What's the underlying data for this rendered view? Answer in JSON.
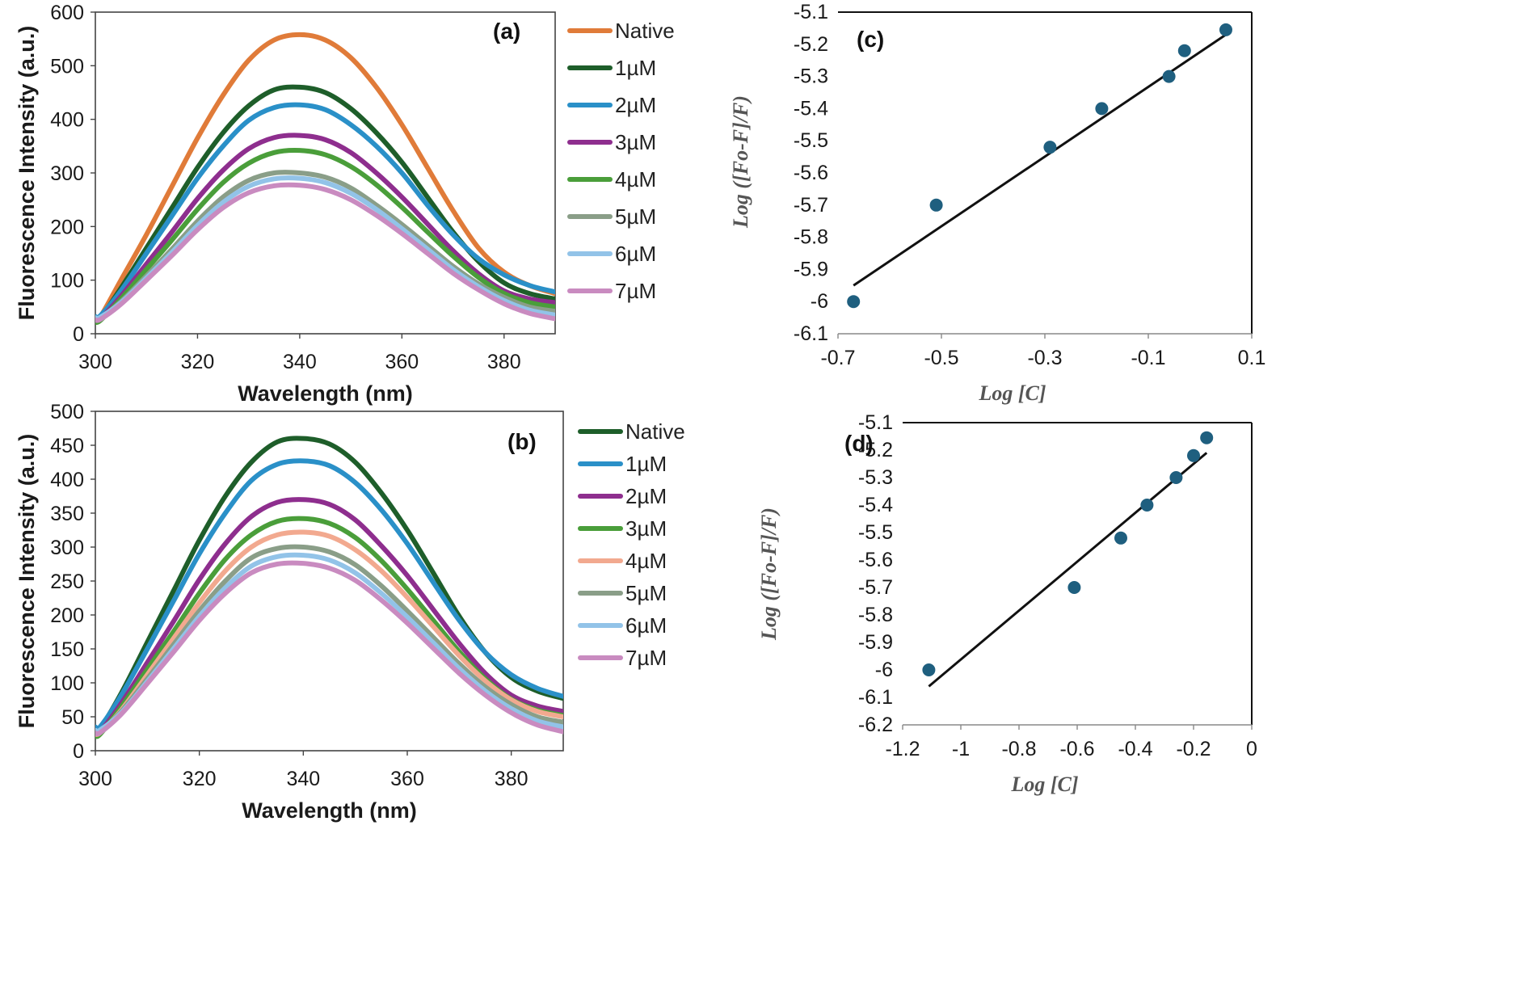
{
  "figure": {
    "panels": [
      "a",
      "b",
      "c",
      "d"
    ]
  },
  "chart_data": [
    {
      "id": "a",
      "type": "line",
      "panel_label": "(a)",
      "xlabel": "Wavelength (nm)",
      "ylabel": "Fluorescence Intensity (a.u.)",
      "xlim": [
        300,
        390
      ],
      "ylim": [
        0,
        600
      ],
      "xticks": [
        300,
        320,
        340,
        360,
        380
      ],
      "yticks": [
        0,
        100,
        200,
        300,
        400,
        500,
        600
      ],
      "grid": false,
      "legend_position": "right",
      "x": [
        300,
        301,
        305,
        310,
        315,
        320,
        325,
        330,
        335,
        340,
        345,
        350,
        355,
        360,
        365,
        370,
        375,
        380,
        385,
        390
      ],
      "series": [
        {
          "name": "Native",
          "color": "#E07B39",
          "values": [
            30,
            32,
            100,
            185,
            275,
            365,
            445,
            510,
            548,
            558,
            548,
            515,
            460,
            390,
            310,
            230,
            160,
            115,
            90,
            75
          ]
        },
        {
          "name": "1µM",
          "color": "#1E5E2A",
          "values": [
            28,
            30,
            85,
            160,
            235,
            310,
            375,
            425,
            455,
            460,
            450,
            420,
            375,
            320,
            255,
            190,
            135,
            95,
            75,
            65
          ]
        },
        {
          "name": "2µM",
          "color": "#2A90C8",
          "values": [
            32,
            34,
            80,
            150,
            220,
            290,
            350,
            398,
            422,
            427,
            418,
            390,
            350,
            300,
            240,
            185,
            140,
            110,
            90,
            78
          ]
        },
        {
          "name": "3µM",
          "color": "#8E2E8E",
          "values": [
            27,
            28,
            70,
            130,
            190,
            252,
            305,
            345,
            366,
            370,
            362,
            338,
            300,
            255,
            205,
            155,
            112,
            80,
            65,
            58
          ]
        },
        {
          "name": "4µM",
          "color": "#4A9E3A",
          "values": [
            22,
            25,
            65,
            120,
            175,
            232,
            282,
            318,
            338,
            342,
            334,
            312,
            278,
            236,
            190,
            145,
            105,
            75,
            58,
            50
          ]
        },
        {
          "name": "5µM",
          "color": "#8A9E88",
          "values": [
            28,
            30,
            60,
            108,
            158,
            210,
            255,
            286,
            300,
            300,
            292,
            272,
            240,
            204,
            165,
            126,
            93,
            68,
            50,
            42
          ]
        },
        {
          "name": "6µM",
          "color": "#92C3E8",
          "values": [
            30,
            31,
            58,
            104,
            152,
            202,
            245,
            275,
            289,
            290,
            282,
            262,
            232,
            196,
            158,
            120,
            88,
            62,
            44,
            35
          ]
        },
        {
          "name": "7µM",
          "color": "#C98BC0",
          "values": [
            26,
            27,
            55,
            100,
            146,
            194,
            235,
            263,
            276,
            277,
            269,
            250,
            221,
            187,
            150,
            113,
            82,
            56,
            38,
            28
          ]
        }
      ]
    },
    {
      "id": "b",
      "type": "line",
      "panel_label": "(b)",
      "xlabel": "Wavelength (nm)",
      "ylabel": "Fluorescence Intensity (a.u.)",
      "xlim": [
        300,
        390
      ],
      "ylim": [
        0,
        500
      ],
      "xticks": [
        300,
        320,
        340,
        360,
        380
      ],
      "yticks": [
        0,
        50,
        100,
        150,
        200,
        250,
        300,
        350,
        400,
        450,
        500
      ],
      "grid": false,
      "legend_position": "right",
      "x": [
        300,
        301,
        305,
        310,
        315,
        320,
        325,
        330,
        335,
        340,
        345,
        350,
        355,
        360,
        365,
        370,
        375,
        380,
        385,
        390
      ],
      "series": [
        {
          "name": "Native",
          "color": "#1E5E2A",
          "values": [
            33,
            34,
            85,
            160,
            235,
            310,
            375,
            425,
            455,
            460,
            452,
            425,
            380,
            325,
            262,
            198,
            145,
            108,
            88,
            77
          ]
        },
        {
          "name": "1µM",
          "color": "#2A90C8",
          "values": [
            35,
            36,
            82,
            150,
            220,
            290,
            350,
            398,
            422,
            427,
            420,
            395,
            355,
            305,
            248,
            192,
            145,
            112,
            92,
            80
          ]
        },
        {
          "name": "2µM",
          "color": "#8E2E8E",
          "values": [
            28,
            29,
            70,
            130,
            190,
            252,
            305,
            345,
            366,
            370,
            363,
            340,
            302,
            258,
            208,
            158,
            114,
            82,
            66,
            58
          ]
        },
        {
          "name": "3µM",
          "color": "#4A9E3A",
          "values": [
            22,
            25,
            65,
            120,
            175,
            232,
            282,
            318,
            338,
            342,
            335,
            314,
            280,
            238,
            192,
            146,
            106,
            76,
            60,
            52
          ]
        },
        {
          "name": "4µM",
          "color": "#F2A98F",
          "values": [
            25,
            27,
            60,
            112,
            165,
            218,
            265,
            300,
            318,
            322,
            316,
            296,
            265,
            226,
            183,
            140,
            103,
            75,
            58,
            50
          ]
        },
        {
          "name": "5µM",
          "color": "#8A9E88",
          "values": [
            28,
            29,
            58,
            106,
            156,
            206,
            250,
            284,
            298,
            300,
            293,
            274,
            243,
            206,
            167,
            128,
            94,
            68,
            50,
            42
          ]
        },
        {
          "name": "6µM",
          "color": "#92C3E8",
          "values": [
            30,
            31,
            56,
            102,
            150,
            198,
            240,
            272,
            286,
            288,
            281,
            262,
            232,
            197,
            159,
            121,
            88,
            62,
            44,
            35
          ]
        },
        {
          "name": "7µM",
          "color": "#C98BC0",
          "values": [
            26,
            27,
            54,
            99,
            145,
            192,
            232,
            262,
            275,
            276,
            269,
            251,
            222,
            188,
            151,
            114,
            82,
            56,
            38,
            28
          ]
        }
      ]
    },
    {
      "id": "c",
      "type": "scatter",
      "panel_label": "(c)",
      "xlabel": "Log [C]",
      "ylabel": "Log ([Fo-F]/F)",
      "xlim": [
        -0.7,
        0.1
      ],
      "ylim": [
        -6.1,
        -5.1
      ],
      "xticks": [
        -0.7,
        -0.5,
        -0.3,
        -0.1,
        0.1
      ],
      "xtick_labels": [
        "-0.7",
        "-0.5",
        "-0.3",
        "-0.1",
        "0.1"
      ],
      "yticks": [
        -5.1,
        -5.2,
        -5.3,
        -5.4,
        -5.5,
        -5.6,
        -5.7,
        -5.8,
        -5.9,
        -6,
        -6.1
      ],
      "ytick_labels": [
        "-5.1",
        "-5.2",
        "-5.3",
        "-5.4",
        "-5.5",
        "-5.6",
        "-5.7",
        "-5.8",
        "-5.9",
        "-6",
        "-6.1"
      ],
      "grid": false,
      "point_color": "#1F5F7F",
      "points": [
        {
          "x": -0.67,
          "y": -6.0
        },
        {
          "x": -0.51,
          "y": -5.7
        },
        {
          "x": -0.29,
          "y": -5.52
        },
        {
          "x": -0.19,
          "y": -5.4
        },
        {
          "x": -0.06,
          "y": -5.3
        },
        {
          "x": -0.03,
          "y": -5.22
        },
        {
          "x": 0.05,
          "y": -5.155
        }
      ],
      "trendline": {
        "x": [
          -0.67,
          0.05
        ],
        "y": [
          -5.95,
          -5.17
        ]
      }
    },
    {
      "id": "d",
      "type": "scatter",
      "panel_label": "(d)",
      "xlabel": "Log [C]",
      "ylabel": "Log ([Fo-F]/F)",
      "xlim": [
        -1.2,
        0
      ],
      "ylim": [
        -6.2,
        -5.1
      ],
      "xticks": [
        -1.2,
        -1,
        -0.8,
        -0.6,
        -0.4,
        -0.2,
        0
      ],
      "xtick_labels": [
        "-1.2",
        "-1",
        "-0.8",
        "-0.6",
        "-0.4",
        "-0.2",
        "0"
      ],
      "yticks": [
        -5.1,
        -5.2,
        -5.3,
        -5.4,
        -5.5,
        -5.6,
        -5.7,
        -5.8,
        -5.9,
        -6,
        -6.1,
        -6.2
      ],
      "ytick_labels": [
        "-5.1",
        "-5.2",
        "-5.3",
        "-5.4",
        "-5.5",
        "-5.6",
        "-5.7",
        "-5.8",
        "-5.9",
        "-6",
        "-6.1",
        "-6.2"
      ],
      "grid": false,
      "point_color": "#1F5F7F",
      "points": [
        {
          "x": -1.11,
          "y": -6.0
        },
        {
          "x": -0.61,
          "y": -5.7
        },
        {
          "x": -0.45,
          "y": -5.52
        },
        {
          "x": -0.36,
          "y": -5.4
        },
        {
          "x": -0.26,
          "y": -5.3
        },
        {
          "x": -0.2,
          "y": -5.22
        },
        {
          "x": -0.155,
          "y": -5.155
        }
      ],
      "trendline": {
        "x": [
          -1.11,
          -0.155
        ],
        "y": [
          -6.06,
          -5.21
        ]
      }
    }
  ]
}
